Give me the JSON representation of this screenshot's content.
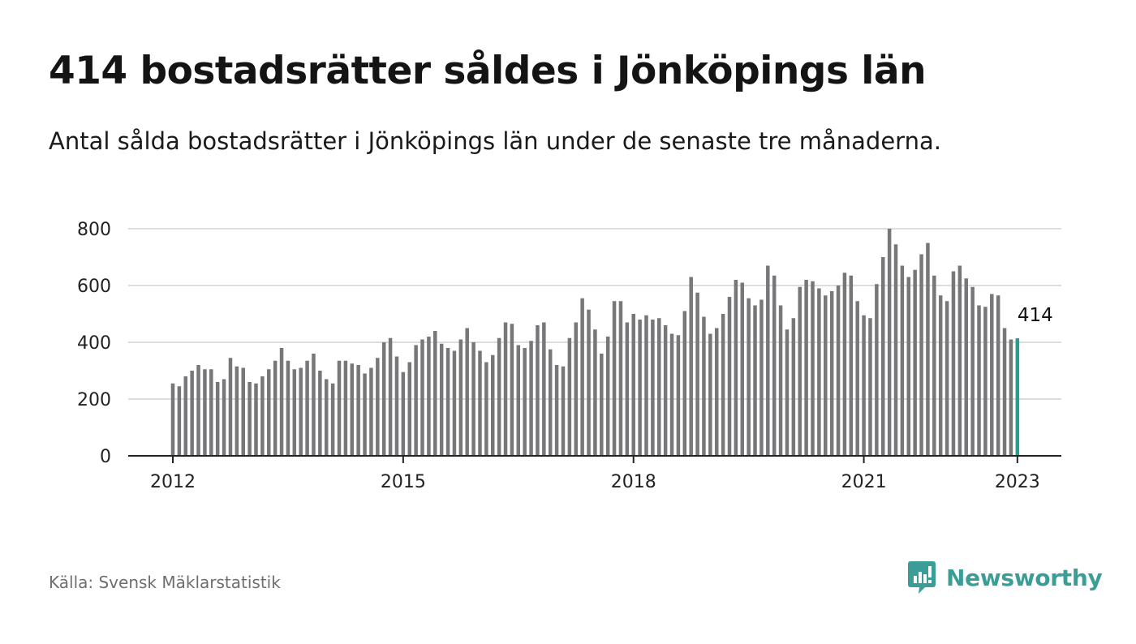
{
  "header": {
    "title": "414 bostadsrätter såldes i Jönköpings län",
    "subtitle": "Antal sålda bostadsrätter i Jönköpings län under de senaste tre månaderna."
  },
  "footer": {
    "source": "Källa: Svensk Mäklarstatistik",
    "brand": "Newsworthy"
  },
  "colors": {
    "bar": "#77777a",
    "highlight": "#2a9d8f",
    "grid": "#dddddd",
    "axis": "#222222",
    "brand": "#3a9e97"
  },
  "chart_data": {
    "type": "bar",
    "title": "414 bostadsrätter såldes i Jönköpings län",
    "subtitle": "Antal sålda bostadsrätter i Jönköpings län under de senaste tre månaderna.",
    "xlabel": "",
    "ylabel": "",
    "ylim": [
      0,
      800
    ],
    "yticks": [
      0,
      200,
      400,
      600,
      800
    ],
    "yticklabels": [
      "0",
      "200",
      "400",
      "600",
      "800"
    ],
    "xticks": [
      "2012-01",
      "2015-01",
      "2018-01",
      "2021-01",
      "2023-01"
    ],
    "xticklabels": [
      "2012",
      "2015",
      "2018",
      "2021",
      "2023"
    ],
    "grid": true,
    "annotation": {
      "x": "2023-01",
      "text": "414"
    },
    "highlight_last": true,
    "series": [
      {
        "start": "2012-01",
        "frequency": "monthly",
        "values": [
          255,
          245,
          280,
          300,
          320,
          305,
          305,
          260,
          270,
          345,
          315,
          310,
          260,
          255,
          280,
          305,
          335,
          380,
          335,
          305,
          310,
          335,
          360,
          300,
          270,
          255,
          335,
          335,
          325,
          320,
          290,
          310,
          345,
          400,
          415,
          350,
          295,
          330,
          390,
          410,
          420,
          440,
          395,
          380,
          370,
          410,
          450,
          400,
          370,
          330,
          355,
          415,
          470,
          465,
          390,
          380,
          405,
          460,
          470,
          375,
          320,
          315,
          415,
          470,
          555,
          515,
          445,
          360,
          420,
          545,
          545,
          470,
          500,
          480,
          495,
          480,
          485,
          460,
          430,
          425,
          510,
          630,
          575,
          490,
          430,
          450,
          500,
          560,
          620,
          610,
          555,
          530,
          550,
          670,
          635,
          530,
          445,
          485,
          595,
          620,
          615,
          590,
          565,
          580,
          600,
          645,
          635,
          545,
          495,
          485,
          605,
          700,
          800,
          745,
          670,
          630,
          655,
          710,
          750,
          635,
          565,
          545,
          650,
          670,
          625,
          595,
          530,
          525,
          570,
          565,
          450,
          410,
          414
        ]
      }
    ]
  }
}
